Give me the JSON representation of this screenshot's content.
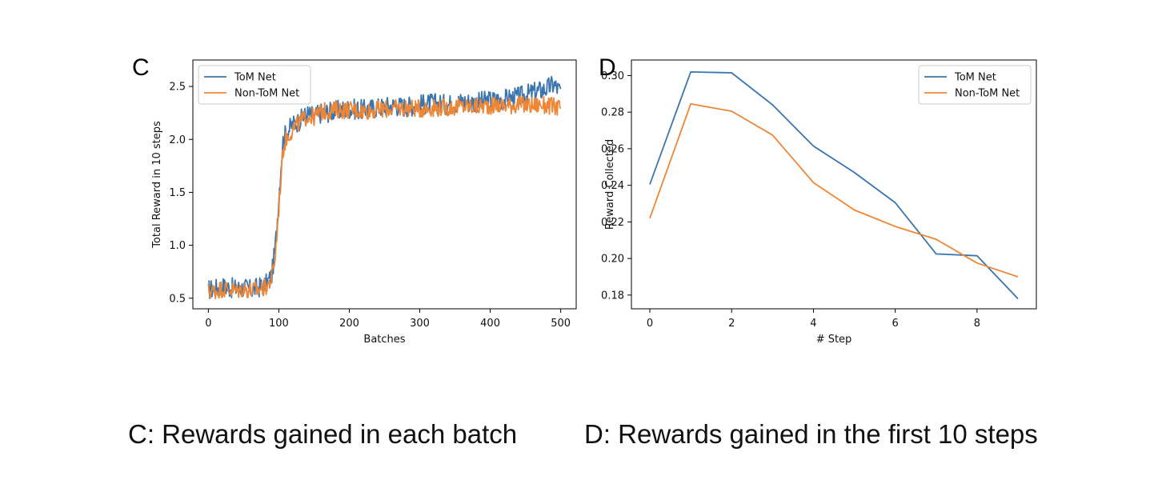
{
  "panels": {
    "c": {
      "letter": "C",
      "caption": "C: Rewards gained in each batch"
    },
    "d": {
      "letter": "D",
      "caption": "D: Rewards gained in the first 10 steps"
    }
  },
  "colors": {
    "tom": "#3b75af",
    "nontom": "#ef8636"
  },
  "chart_data": [
    {
      "type": "line",
      "panel": "C",
      "title": "",
      "xlabel": "Batches",
      "ylabel": "Total Reward in 10 steps",
      "xlim": [
        -22,
        522
      ],
      "ylim": [
        0.4,
        2.75
      ],
      "xticks": [
        0,
        100,
        200,
        300,
        400,
        500
      ],
      "yticks": [
        0.5,
        1.0,
        1.5,
        2.0,
        2.5
      ],
      "ytick_labels": [
        "0.5",
        "1.0",
        "1.5",
        "2.0",
        "2.5"
      ],
      "legend": "upper-left",
      "grid": false,
      "x": [
        0,
        10,
        20,
        30,
        40,
        50,
        60,
        70,
        80,
        85,
        90,
        95,
        100,
        103,
        106,
        110,
        115,
        120,
        130,
        140,
        150,
        160,
        170,
        180,
        200,
        220,
        240,
        260,
        280,
        300,
        320,
        340,
        360,
        380,
        400,
        420,
        440,
        460,
        470,
        480,
        490,
        500
      ],
      "series": [
        {
          "name": "ToM Net",
          "values": [
            0.58,
            0.59,
            0.61,
            0.6,
            0.59,
            0.6,
            0.58,
            0.6,
            0.62,
            0.66,
            0.72,
            0.98,
            1.45,
            1.75,
            1.98,
            2.06,
            2.1,
            2.14,
            2.18,
            2.24,
            2.22,
            2.25,
            2.26,
            2.27,
            2.29,
            2.28,
            2.3,
            2.32,
            2.31,
            2.33,
            2.34,
            2.33,
            2.36,
            2.35,
            2.37,
            2.38,
            2.4,
            2.44,
            2.46,
            2.48,
            2.52,
            2.45
          ]
        },
        {
          "name": "Non-ToM Net",
          "values": [
            0.57,
            0.57,
            0.59,
            0.58,
            0.57,
            0.59,
            0.57,
            0.58,
            0.6,
            0.63,
            0.69,
            0.9,
            1.35,
            1.65,
            1.9,
            2.0,
            2.05,
            2.1,
            2.16,
            2.22,
            2.21,
            2.26,
            2.27,
            2.28,
            2.28,
            2.27,
            2.28,
            2.29,
            2.3,
            2.29,
            2.3,
            2.3,
            2.31,
            2.31,
            2.32,
            2.32,
            2.33,
            2.32,
            2.33,
            2.32,
            2.31,
            2.3
          ]
        }
      ],
      "noise_amplitude": 0.07
    },
    {
      "type": "line",
      "panel": "D",
      "title": "",
      "xlabel": "# Step",
      "ylabel": "Reward Collected",
      "xlim": [
        -0.45,
        9.45
      ],
      "ylim": [
        0.1725,
        0.3085
      ],
      "xticks": [
        0,
        2,
        4,
        6,
        8
      ],
      "yticks": [
        0.18,
        0.2,
        0.22,
        0.24,
        0.26,
        0.28,
        0.3
      ],
      "ytick_labels": [
        "0.18",
        "0.20",
        "0.22",
        "0.24",
        "0.26",
        "0.28",
        "0.30"
      ],
      "legend": "upper-right",
      "grid": false,
      "x": [
        0,
        1,
        2,
        3,
        4,
        5,
        6,
        7,
        8,
        9
      ],
      "series": [
        {
          "name": "ToM Net",
          "values": [
            0.2405,
            0.302,
            0.3015,
            0.284,
            0.2615,
            0.247,
            0.2305,
            0.2025,
            0.2015,
            0.178
          ]
        },
        {
          "name": "Non-ToM Net",
          "values": [
            0.222,
            0.2845,
            0.2805,
            0.2675,
            0.2415,
            0.2265,
            0.2175,
            0.2105,
            0.1975,
            0.19
          ]
        }
      ]
    }
  ]
}
